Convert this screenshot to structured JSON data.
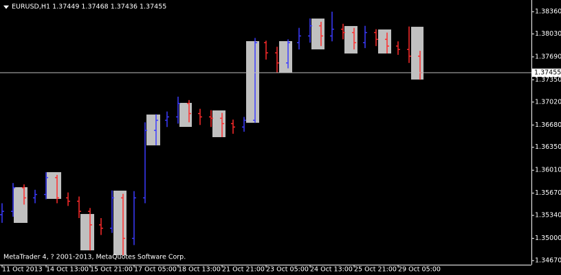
{
  "chart_data": {
    "type": "ohlc",
    "title": "EURUSD,H1  1.37449 1.37468 1.37436 1.37455",
    "footer": "MetaTrader 4, ? 2001-2013, MetaQuotes Software Corp.",
    "x": [
      0,
      8,
      16,
      24,
      32,
      40,
      48,
      56,
      64,
      72,
      80,
      88,
      96,
      104,
      112,
      120,
      128,
      136,
      144,
      152,
      160,
      168,
      176,
      184,
      192,
      200,
      208,
      216,
      224,
      232,
      240,
      248,
      256,
      264,
      272,
      280,
      288,
      296,
      304
    ],
    "open": [
      1.3535,
      1.354,
      1.3575,
      1.356,
      1.3565,
      1.359,
      1.356,
      1.3555,
      1.354,
      1.352,
      1.3515,
      1.356,
      1.35,
      1.356,
      1.366,
      1.3675,
      1.368,
      1.37,
      1.3685,
      1.368,
      1.3678,
      1.367,
      1.3665,
      1.3675,
      1.379,
      1.3775,
      1.376,
      1.379,
      1.38,
      1.3815,
      1.38,
      1.381,
      1.3805,
      1.379,
      1.3805,
      1.3795,
      1.3785,
      1.378,
      1.377
    ],
    "high": [
      1.3552,
      1.3582,
      1.358,
      1.3572,
      1.3598,
      1.3594,
      1.3568,
      1.3562,
      1.3545,
      1.353,
      1.3571,
      1.3566,
      1.357,
      1.3672,
      1.3684,
      1.3688,
      1.371,
      1.3705,
      1.3692,
      1.369,
      1.3686,
      1.3676,
      1.368,
      1.3797,
      1.3793,
      1.3784,
      1.3795,
      1.3812,
      1.3826,
      1.3821,
      1.3836,
      1.3818,
      1.3812,
      1.3815,
      1.381,
      1.3805,
      1.3792,
      1.3814,
      1.3778
    ],
    "low": [
      1.3523,
      1.3532,
      1.355,
      1.3552,
      1.3558,
      1.3552,
      1.3548,
      1.353,
      1.3482,
      1.3505,
      1.3508,
      1.3475,
      1.349,
      1.3552,
      1.3638,
      1.3665,
      1.367,
      1.3672,
      1.3668,
      1.3665,
      1.365,
      1.3655,
      1.3658,
      1.3671,
      1.3765,
      1.3745,
      1.3752,
      1.378,
      1.379,
      1.3785,
      1.3792,
      1.3795,
      1.378,
      1.3782,
      1.3785,
      1.3774,
      1.3772,
      1.376,
      1.3735
    ],
    "close": [
      1.354,
      1.3575,
      1.356,
      1.3565,
      1.359,
      1.356,
      1.3555,
      1.354,
      1.352,
      1.3515,
      1.356,
      1.35,
      1.356,
      1.366,
      1.3675,
      1.368,
      1.37,
      1.3685,
      1.368,
      1.3678,
      1.367,
      1.3665,
      1.3675,
      1.379,
      1.3775,
      1.376,
      1.379,
      1.38,
      1.3815,
      1.38,
      1.381,
      1.3805,
      1.379,
      1.3805,
      1.3795,
      1.3785,
      1.378,
      1.377,
      1.37455
    ],
    "up_color": "#3a3aff",
    "down_color": "#ff2a2a",
    "box_color": "#c0c0c0",
    "boxes": [
      {
        "x": [
          8.5,
          18.5
        ],
        "y": [
          1.35229,
          1.35758
        ]
      },
      {
        "x": [
          32.5,
          43
        ],
        "y": [
          1.35585,
          1.35981
        ]
      },
      {
        "x": [
          57,
          67
        ],
        "y": [
          1.34822,
          1.35361
        ]
      },
      {
        "x": [
          81,
          90.5
        ],
        "y": [
          1.34751,
          1.35707
        ]
      },
      {
        "x": [
          105,
          115
        ],
        "y": [
          1.36378,
          1.36835
        ]
      },
      {
        "x": [
          129,
          138
        ],
        "y": [
          1.36652,
          1.37008
        ]
      },
      {
        "x": [
          153,
          162.5
        ],
        "y": [
          1.365,
          1.36896
        ]
      },
      {
        "x": [
          177.5,
          187
        ],
        "y": [
          1.36713,
          1.37923
        ]
      },
      {
        "x": [
          201.5,
          211
        ],
        "y": [
          1.37455,
          1.37923
        ]
      },
      {
        "x": [
          225,
          234.5
        ],
        "y": [
          1.37801,
          1.38258
        ]
      },
      {
        "x": [
          249,
          258.5
        ],
        "y": [
          1.3774,
          1.38147
        ]
      },
      {
        "x": [
          273.5,
          283
        ],
        "y": [
          1.3774,
          1.38096
        ]
      },
      {
        "x": [
          297.5,
          306.5
        ],
        "y": [
          1.37354,
          1.38136
        ]
      }
    ],
    "price_line": {
      "value": 1.37455,
      "label": "1.37455"
    },
    "xlim": [
      -1.5,
      385
    ],
    "ylim": [
      1.34609,
      1.38533
    ],
    "xticks": [
      {
        "value": 0,
        "label": "11 Oct 2013"
      },
      {
        "value": 32,
        "label": "14 Oct 13:00"
      },
      {
        "value": 64,
        "label": "15 Oct 21:00"
      },
      {
        "value": 96,
        "label": "17 Oct 05:00"
      },
      {
        "value": 128,
        "label": "18 Oct 13:00"
      },
      {
        "value": 160,
        "label": "21 Oct 21:00"
      },
      {
        "value": 192,
        "label": "23 Oct 05:00"
      },
      {
        "value": 224,
        "label": "24 Oct 13:00"
      },
      {
        "value": 256,
        "label": "25 Oct 21:00"
      },
      {
        "value": 288,
        "label": "29 Oct 05:00"
      }
    ],
    "yticks": [
      {
        "value": 1.3836,
        "label": "1.38360"
      },
      {
        "value": 1.3803,
        "label": "1.38030"
      },
      {
        "value": 1.3769,
        "label": "1.37690"
      },
      {
        "value": 1.3735,
        "label": "1.37350"
      },
      {
        "value": 1.3702,
        "label": "1.37020"
      },
      {
        "value": 1.3668,
        "label": "1.36680"
      },
      {
        "value": 1.3635,
        "label": "1.36350"
      },
      {
        "value": 1.3601,
        "label": "1.36010"
      },
      {
        "value": 1.3567,
        "label": "1.35670"
      },
      {
        "value": 1.3534,
        "label": "1.35340"
      },
      {
        "value": 1.35,
        "label": "1.35000"
      },
      {
        "value": 1.3467,
        "label": "1.34670"
      }
    ]
  }
}
